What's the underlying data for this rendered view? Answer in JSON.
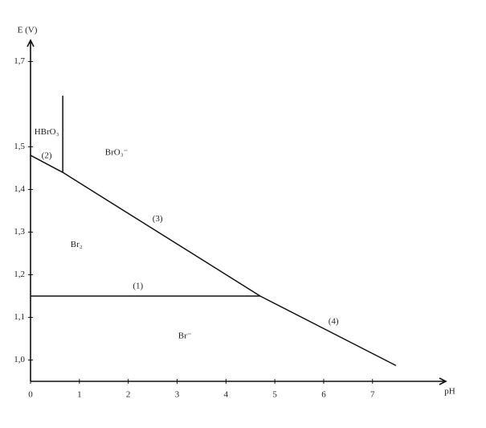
{
  "chart_data": {
    "type": "pourbaix",
    "x_label": "pH",
    "y_label": "E (V)",
    "xlim": [
      0,
      8.5
    ],
    "ylim": [
      0.95,
      1.75
    ],
    "xticks": [
      0,
      1,
      2,
      3,
      4,
      5,
      6,
      7
    ],
    "yticks": [
      {
        "value": 1.0,
        "label": "1,0"
      },
      {
        "value": 1.1,
        "label": "1,1"
      },
      {
        "value": 1.2,
        "label": "1,2"
      },
      {
        "value": 1.3,
        "label": "1,3"
      },
      {
        "value": 1.4,
        "label": "1,4"
      },
      {
        "value": 1.5,
        "label": "1,5"
      },
      {
        "value": 1.7,
        "label": "1,7"
      }
    ],
    "color": "#111111",
    "lines": [
      {
        "x": [
          0,
          4.7
        ],
        "y": [
          1.15,
          1.15
        ]
      },
      {
        "x": [
          0,
          0.66
        ],
        "y": [
          1.48,
          1.44
        ]
      },
      {
        "x": [
          0.66,
          4.7
        ],
        "y": [
          1.44,
          1.15
        ]
      },
      {
        "x": [
          4.7,
          7.48
        ],
        "y": [
          1.15,
          0.987
        ]
      },
      {
        "x": [
          0.66,
          0.66
        ],
        "y": [
          1.44,
          1.62
        ]
      }
    ],
    "annotations": [
      {
        "text": "(1)",
        "x": 2.2,
        "y": 1.173
      },
      {
        "text": "(2)",
        "x": 0.33,
        "y": 1.478
      },
      {
        "text": "(3)",
        "x": 2.6,
        "y": 1.33
      },
      {
        "text": "(4)",
        "x": 6.2,
        "y": 1.09
      },
      {
        "text": "HBrO₃",
        "x": 0.33,
        "y": 1.534
      },
      {
        "text": "BrO₃⁻",
        "x": 1.76,
        "y": 1.486
      },
      {
        "text": "Br₂",
        "x": 0.94,
        "y": 1.27
      },
      {
        "text": "Br⁻",
        "x": 3.16,
        "y": 1.056
      }
    ]
  }
}
